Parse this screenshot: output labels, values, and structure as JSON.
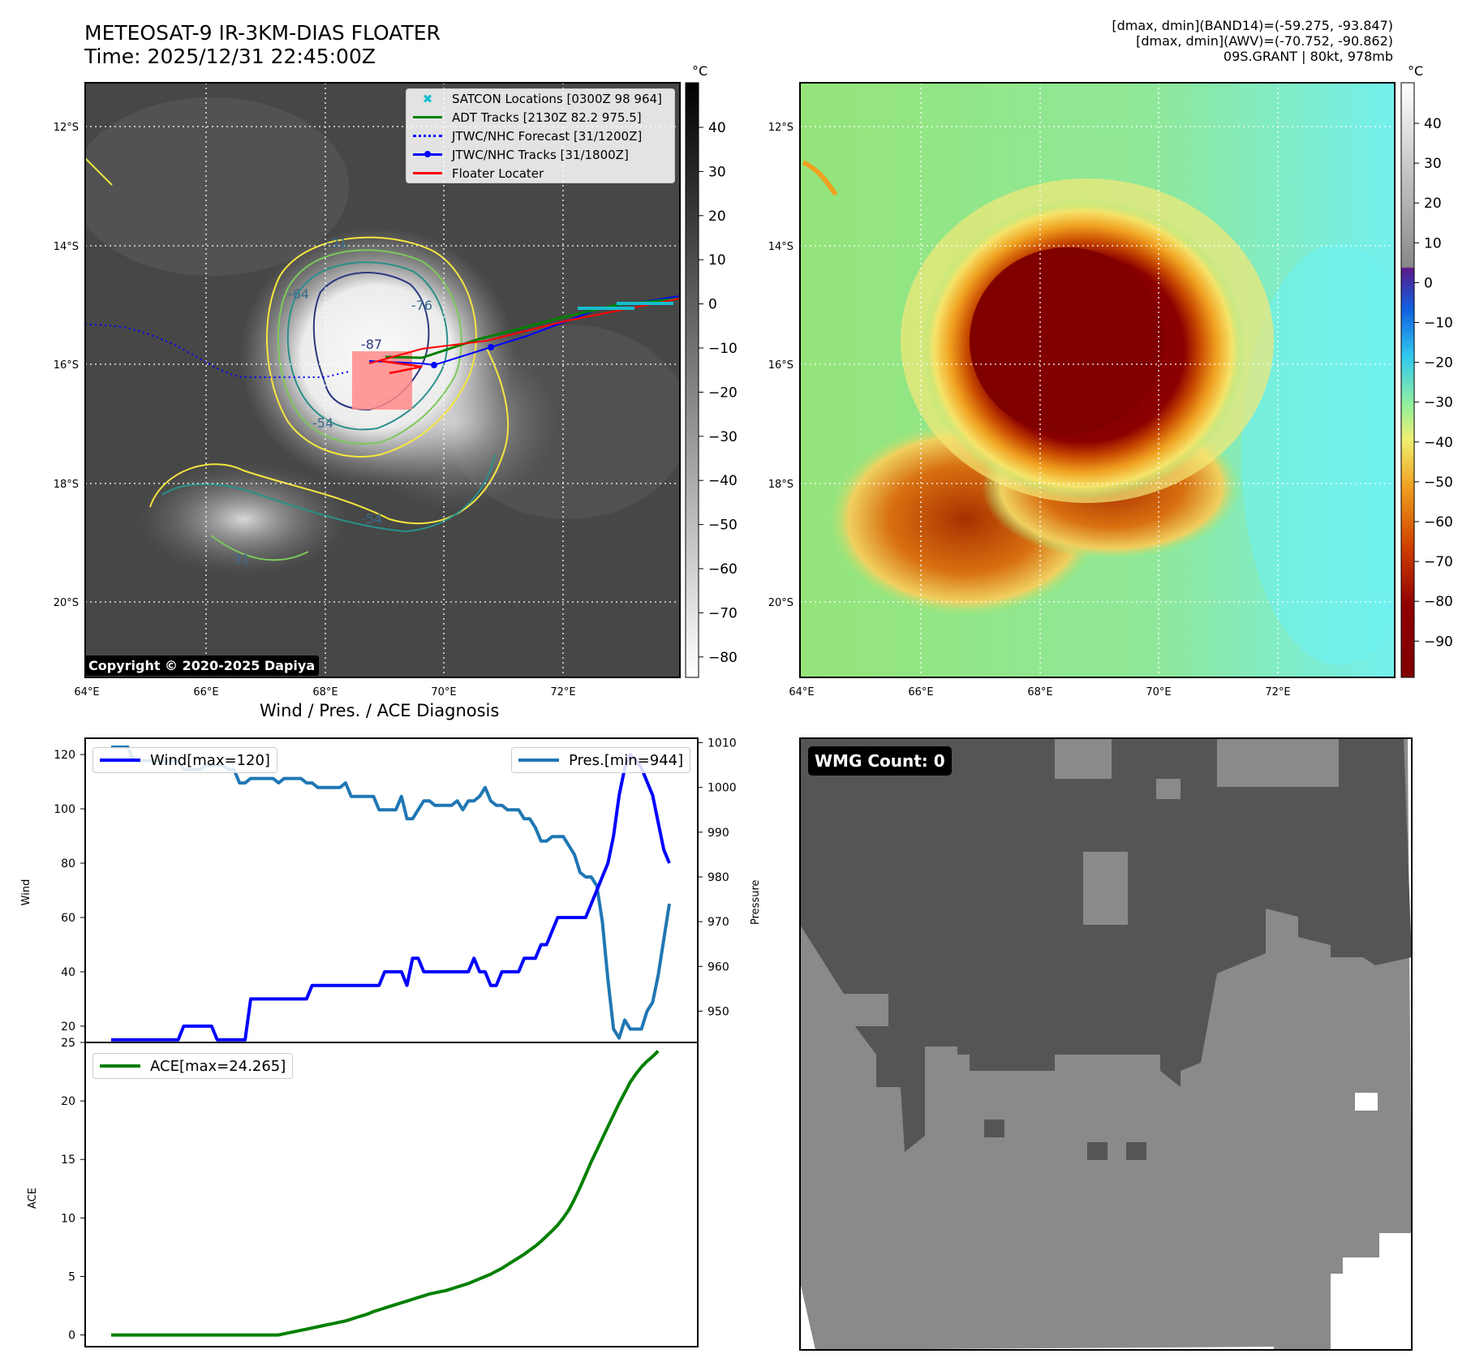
{
  "header": {
    "title_line1": "METEOSAT-9 IR-3KM-DIAS FLOATER",
    "title_line2": "Time: 2025/12/31 22:45:00Z",
    "info_line1": "[dmax, dmin](BAND14)=(-59.275, -93.847)",
    "info_line2": "[dmax, dmin](AWV)=(-70.752, -90.862)",
    "info_line3": "09S.GRANT | 80kt, 978mb"
  },
  "ir_panel": {
    "lat_labels": [
      "12°S",
      "14°S",
      "16°S",
      "18°S",
      "20°S"
    ],
    "lon_labels": [
      "64°E",
      "66°E",
      "68°E",
      "70°E",
      "72°E"
    ],
    "colorbar_unit": "°C",
    "colorbar_ticks": [
      "40",
      "30",
      "20",
      "10",
      "0",
      "−10",
      "−20",
      "−30",
      "−40",
      "−50",
      "−60",
      "−70",
      "−80"
    ],
    "contour_labels": [
      "-31",
      "-64",
      "-76",
      "-87",
      "-54",
      "-54",
      "-31"
    ],
    "copyright": "Copyright © 2020-2025 Dapiya",
    "legend": [
      {
        "label": "SATCON Locations [0300Z 98 964]",
        "color": "#17becf"
      },
      {
        "label": "ADT Tracks [2130Z 82.2 975.5]",
        "color": "#008000"
      },
      {
        "label": "JTWC/NHC Forecast [31/1200Z]",
        "color": "#0000ff"
      },
      {
        "label": "JTWC/NHC Tracks [31/1800Z]",
        "color": "#0000ff"
      },
      {
        "label": "Floater Locater",
        "color": "#ff0000"
      }
    ]
  },
  "color_panel": {
    "lat_labels": [
      "12°S",
      "14°S",
      "16°S",
      "18°S",
      "20°S"
    ],
    "lon_labels": [
      "64°E",
      "66°E",
      "68°E",
      "70°E",
      "72°E"
    ],
    "colorbar_unit": "°C",
    "colorbar_ticks": [
      "40",
      "30",
      "20",
      "10",
      "0",
      "−10",
      "−20",
      "−30",
      "−40",
      "−50",
      "−60",
      "−70",
      "−80",
      "−90"
    ]
  },
  "diagnosis": {
    "title": "Wind / Pres. / ACE Diagnosis",
    "wind_legend": "Wind[max=120]",
    "pres_legend": "Pres.[min=944]",
    "ace_legend": "ACE[max=24.265]",
    "wind_axis_label": "Wind",
    "pres_axis_label": "Pressure",
    "ace_axis_label": "ACE"
  },
  "wmg_panel": {
    "badge": "WMG Count: 0"
  },
  "colors": {
    "wind": "#0000ff",
    "pressure": "#1f77b4",
    "ace": "#008000"
  },
  "chart_data": [
    {
      "type": "line",
      "title": "Wind / Pres. / ACE Diagnosis",
      "ylabel": "Wind",
      "ylim": [
        14,
        126
      ],
      "yticks": [
        20,
        40,
        60,
        80,
        100,
        120
      ],
      "series": [
        {
          "name": "Wind[max=120]",
          "values": [
            15,
            15,
            15,
            15,
            15,
            15,
            15,
            15,
            15,
            15,
            15,
            15,
            15,
            20,
            20,
            20,
            20,
            20,
            20,
            15,
            15,
            15,
            15,
            15,
            15,
            30,
            30,
            30,
            30,
            30,
            30,
            30,
            30,
            30,
            30,
            30,
            35,
            35,
            35,
            35,
            35,
            35,
            35,
            35,
            35,
            35,
            35,
            35,
            35,
            40,
            40,
            40,
            40,
            35,
            45,
            45,
            40,
            40,
            40,
            40,
            40,
            40,
            40,
            40,
            40,
            45,
            40,
            40,
            35,
            35,
            40,
            40,
            40,
            40,
            45,
            45,
            45,
            50,
            50,
            55,
            60,
            60,
            60,
            60,
            60,
            60,
            65,
            70,
            75,
            80,
            90,
            105,
            115,
            120,
            118,
            115,
            110,
            105,
            95,
            85,
            80
          ]
        }
      ]
    },
    {
      "type": "line",
      "ylabel": "Pressure",
      "ylim": [
        943,
        1011
      ],
      "yticks": [
        950,
        960,
        970,
        980,
        990,
        1000,
        1010
      ],
      "series": [
        {
          "name": "Pres.[min=944]",
          "values": [
            1009,
            1009,
            1009,
            1009,
            1006,
            1006,
            1006,
            1006,
            1006,
            1006,
            1006,
            1006,
            1006,
            1004,
            1004,
            1004,
            1004,
            1005,
            1005,
            1005,
            1005,
            1004,
            1004,
            1001,
            1001,
            1002,
            1002,
            1002,
            1002,
            1002,
            1001,
            1002,
            1002,
            1002,
            1002,
            1001,
            1001,
            1000,
            1000,
            1000,
            1000,
            1000,
            1001,
            998,
            998,
            998,
            998,
            998,
            995,
            995,
            995,
            995,
            998,
            993,
            993,
            995,
            997,
            997,
            996,
            996,
            996,
            996,
            997,
            995,
            997,
            997,
            998,
            1000,
            997,
            996,
            996,
            995,
            995,
            995,
            993,
            993,
            991,
            988,
            988,
            989,
            989,
            989,
            987,
            985,
            981,
            980,
            980,
            978,
            970,
            957,
            946,
            944,
            948,
            946,
            946,
            946,
            950,
            952,
            958,
            966,
            974
          ]
        }
      ]
    },
    {
      "type": "line",
      "ylabel": "ACE",
      "ylim": [
        -1,
        25
      ],
      "yticks": [
        0,
        5,
        10,
        15,
        20,
        25
      ],
      "series": [
        {
          "name": "ACE[max=24.265]",
          "values": [
            0,
            0,
            0,
            0,
            0,
            0,
            0,
            0,
            0,
            0,
            0,
            0,
            0,
            0,
            0,
            0,
            0,
            0,
            0,
            0,
            0,
            0,
            0,
            0,
            0,
            0,
            0,
            0,
            0,
            0,
            0,
            0.1,
            0.2,
            0.3,
            0.4,
            0.5,
            0.6,
            0.7,
            0.8,
            0.9,
            1.0,
            1.1,
            1.2,
            1.35,
            1.5,
            1.65,
            1.8,
            2.0,
            2.15,
            2.3,
            2.45,
            2.6,
            2.75,
            2.9,
            3.05,
            3.2,
            3.35,
            3.5,
            3.6,
            3.7,
            3.8,
            3.95,
            4.1,
            4.25,
            4.4,
            4.6,
            4.8,
            5.0,
            5.2,
            5.45,
            5.7,
            6.0,
            6.3,
            6.6,
            6.9,
            7.25,
            7.6,
            8.0,
            8.45,
            8.9,
            9.4,
            10.0,
            10.7,
            11.6,
            12.6,
            13.7,
            14.8,
            15.8,
            16.8,
            17.8,
            18.8,
            19.8,
            20.7,
            21.6,
            22.3,
            22.9,
            23.4,
            23.8,
            24.265
          ]
        }
      ]
    }
  ]
}
